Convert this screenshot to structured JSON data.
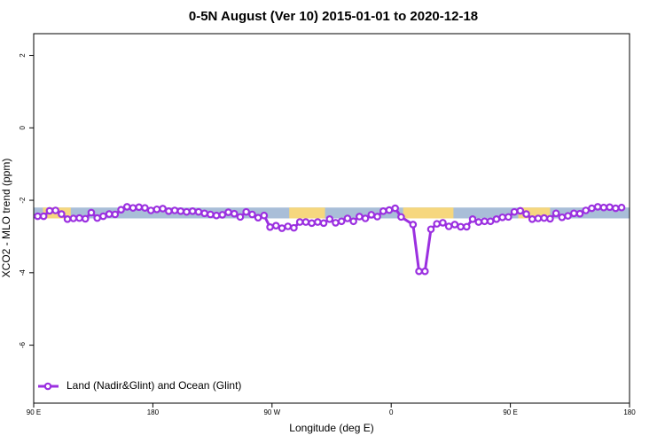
{
  "chart_data": {
    "type": "line",
    "title": "0-5N August (Ver 10)   2015-01-01 to 2020-12-18",
    "xlabel": "Longitude (deg E)",
    "ylabel": "XCO2 - MLO trend (ppm)",
    "xlim": [
      90,
      540
    ],
    "ylim": [
      -7.6,
      2.6
    ],
    "xticks": [
      {
        "value": 90,
        "label": "90 E"
      },
      {
        "value": 180,
        "label": "180"
      },
      {
        "value": 270,
        "label": "90 W"
      },
      {
        "value": 360,
        "label": "0"
      },
      {
        "value": 450,
        "label": "90 E"
      },
      {
        "value": 540,
        "label": "180"
      }
    ],
    "yticks": [
      2,
      0,
      -2,
      -4,
      -6
    ],
    "band": [
      -2.5,
      -2.2
    ],
    "band_color": "#a9bed8",
    "land_color": "#f6d77e",
    "land_regions": [
      [
        97,
        118
      ],
      [
        283,
        310
      ],
      [
        369,
        407
      ],
      [
        456,
        480
      ]
    ],
    "legend": "bottom-left",
    "x": [
      93,
      97.5,
      102,
      106.5,
      111,
      115.5,
      120,
      124.5,
      129,
      133.5,
      138,
      142.5,
      147,
      151.5,
      156,
      160.5,
      165,
      169.5,
      174,
      178.5,
      183,
      187.5,
      192,
      196.5,
      201,
      205.5,
      210,
      214.5,
      219,
      223.5,
      228,
      232.5,
      237,
      241.5,
      246,
      250.5,
      255,
      259.5,
      264,
      268.5,
      273,
      277.5,
      282,
      286.5,
      291,
      295.5,
      300,
      304.5,
      309,
      313.5,
      318,
      322.5,
      327,
      331.5,
      336,
      340.5,
      345,
      349.5,
      354,
      358.5,
      363,
      367.5,
      376.5,
      381,
      385.5,
      390,
      394.5,
      399,
      403.5,
      408,
      412.5,
      417,
      421.5,
      426,
      430.5,
      435,
      439.5,
      444,
      448.5,
      453,
      457.5,
      462,
      466.5,
      471,
      475.5,
      480,
      484.5,
      489,
      493.5,
      498,
      502.5,
      507,
      511.5,
      516,
      520.5,
      525,
      529.5,
      534
    ],
    "series": [
      {
        "name": "Land (Nadir&Glint) and Ocean (Glint)",
        "color": "#9b30e0",
        "values": [
          -2.44,
          -2.44,
          -2.29,
          -2.28,
          -2.38,
          -2.52,
          -2.5,
          -2.49,
          -2.51,
          -2.34,
          -2.49,
          -2.44,
          -2.38,
          -2.39,
          -2.26,
          -2.18,
          -2.21,
          -2.19,
          -2.21,
          -2.28,
          -2.25,
          -2.23,
          -2.3,
          -2.28,
          -2.3,
          -2.32,
          -2.3,
          -2.32,
          -2.36,
          -2.39,
          -2.42,
          -2.4,
          -2.33,
          -2.37,
          -2.46,
          -2.32,
          -2.39,
          -2.48,
          -2.42,
          -2.74,
          -2.7,
          -2.77,
          -2.72,
          -2.76,
          -2.6,
          -2.6,
          -2.63,
          -2.6,
          -2.63,
          -2.52,
          -2.62,
          -2.58,
          -2.5,
          -2.58,
          -2.45,
          -2.5,
          -2.4,
          -2.45,
          -2.3,
          -2.27,
          -2.22,
          -2.46,
          -2.67,
          -3.96,
          -3.96,
          -2.8,
          -2.65,
          -2.62,
          -2.72,
          -2.67,
          -2.73,
          -2.73,
          -2.52,
          -2.6,
          -2.58,
          -2.58,
          -2.52,
          -2.47,
          -2.46,
          -2.32,
          -2.29,
          -2.38,
          -2.52,
          -2.5,
          -2.49,
          -2.51,
          -2.36,
          -2.47,
          -2.43,
          -2.36,
          -2.37,
          -2.28,
          -2.22,
          -2.18,
          -2.2,
          -2.19,
          -2.22,
          -2.2
        ]
      }
    ]
  }
}
